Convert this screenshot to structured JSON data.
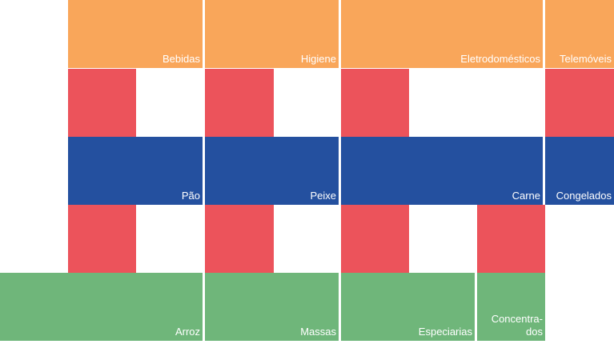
{
  "colors": {
    "orange": "#f9a65a",
    "red": "#ec535b",
    "blue": "#24509f",
    "green": "#6fb67a"
  },
  "rows": {
    "orange": [
      "Bebidas",
      "Higiene",
      "Eletrodomésticos",
      "Telemóveis"
    ],
    "blue": [
      "Pão",
      "Peixe",
      "Carne",
      "Congelados"
    ],
    "green": [
      "Arroz",
      "Massas",
      "Especiarias",
      "Concentra-\ndos"
    ]
  }
}
